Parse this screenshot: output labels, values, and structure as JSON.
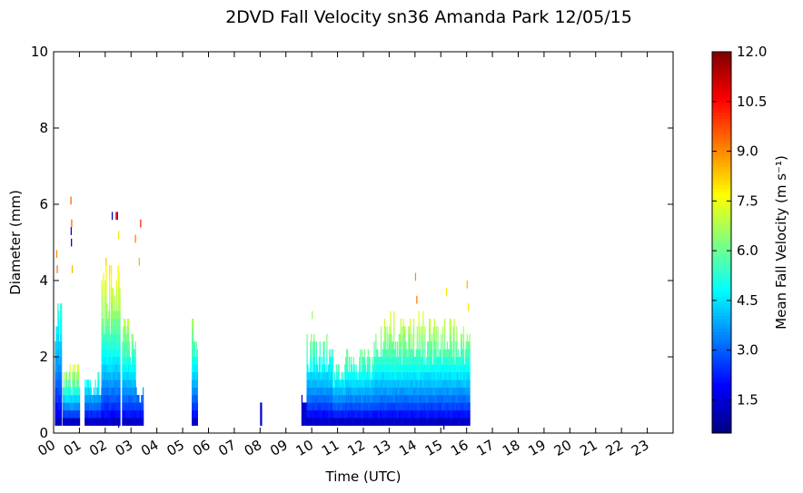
{
  "chart_data": {
    "type": "heatmap",
    "title": "2DVD Fall Velocity sn36 Amanda Park 12/05/15",
    "xlabel": "Time (UTC)",
    "ylabel": "Diameter (mm)",
    "xlim": [
      0,
      24
    ],
    "ylim": [
      0,
      10
    ],
    "x_ticks": [
      "00",
      "01",
      "02",
      "03",
      "04",
      "05",
      "06",
      "07",
      "08",
      "09",
      "10",
      "11",
      "12",
      "13",
      "14",
      "15",
      "16",
      "17",
      "18",
      "19",
      "20",
      "21",
      "22",
      "23"
    ],
    "y_ticks": [
      0,
      2,
      4,
      6,
      8,
      10
    ],
    "colorbar": {
      "label": "Mean Fall Velocity (m s⁻¹)",
      "range": [
        0.5,
        12.0
      ],
      "ticks": [
        "1.5",
        "3.0",
        "4.5",
        "6.0",
        "7.5",
        "9.0",
        "10.5",
        "12.0"
      ],
      "colormap": "jet"
    },
    "bands": [
      {
        "start": 0.05,
        "end": 0.3,
        "top": 3.9,
        "peak": 6.0
      },
      {
        "start": 0.35,
        "end": 1.0,
        "top": 1.7,
        "peak": 7.5
      },
      {
        "start": 1.2,
        "end": 1.85,
        "top": 1.6,
        "peak": 6.0
      },
      {
        "start": 1.85,
        "end": 2.55,
        "top": 4.5,
        "peak": 8.3
      },
      {
        "start": 2.65,
        "end": 3.15,
        "top": 3.0,
        "peak": 7.2
      },
      {
        "start": 3.15,
        "end": 3.45,
        "top": 1.2,
        "peak": 4.0
      },
      {
        "start": 5.35,
        "end": 5.55,
        "top": 3.0,
        "peak": 7.0
      },
      {
        "start": 8.0,
        "end": 8.05,
        "top": 0.9,
        "peak": 1.5
      },
      {
        "start": 9.6,
        "end": 9.8,
        "top": 0.9,
        "peak": 1.5
      },
      {
        "start": 9.8,
        "end": 10.8,
        "top": 2.6,
        "peak": 6.5
      },
      {
        "start": 10.8,
        "end": 11.3,
        "top": 1.8,
        "peak": 6.0
      },
      {
        "start": 11.3,
        "end": 12.4,
        "top": 2.2,
        "peak": 6.5
      },
      {
        "start": 12.4,
        "end": 14.3,
        "top": 3.1,
        "peak": 7.6
      },
      {
        "start": 14.3,
        "end": 16.1,
        "top": 2.9,
        "peak": 7.2
      }
    ],
    "sparse_high": [
      {
        "t": 0.1,
        "d": 4.6,
        "v": 9.0
      },
      {
        "t": 0.12,
        "d": 4.2,
        "v": 9.2
      },
      {
        "t": 0.65,
        "d": 6.0,
        "v": 9.5
      },
      {
        "t": 0.68,
        "d": 5.4,
        "v": 9.5
      },
      {
        "t": 0.66,
        "d": 5.2,
        "v": 1.2
      },
      {
        "t": 0.67,
        "d": 4.9,
        "v": 1.5
      },
      {
        "t": 0.7,
        "d": 4.2,
        "v": 8.5
      },
      {
        "t": 2.25,
        "d": 5.6,
        "v": 1.0
      },
      {
        "t": 2.4,
        "d": 5.6,
        "v": 10.5
      },
      {
        "t": 2.45,
        "d": 5.6,
        "v": 1.2
      },
      {
        "t": 2.5,
        "d": 5.1,
        "v": 8.0
      },
      {
        "t": 3.15,
        "d": 5.0,
        "v": 9.2
      },
      {
        "t": 3.35,
        "d": 5.4,
        "v": 10.2
      },
      {
        "t": 3.3,
        "d": 4.4,
        "v": 8.5
      },
      {
        "t": 10.0,
        "d": 3.0,
        "v": 6.5
      },
      {
        "t": 14.0,
        "d": 4.0,
        "v": 9.0
      },
      {
        "t": 14.05,
        "d": 3.4,
        "v": 9.2
      },
      {
        "t": 15.2,
        "d": 3.6,
        "v": 8.0
      },
      {
        "t": 16.0,
        "d": 3.8,
        "v": 8.5
      },
      {
        "t": 16.05,
        "d": 3.2,
        "v": 8.0
      },
      {
        "t": 15.1,
        "d": 0.1,
        "v": 1.0
      },
      {
        "t": 2.3,
        "d": 0.2,
        "v": 1.0
      },
      {
        "t": 2.5,
        "d": 0.15,
        "v": 1.0
      }
    ]
  }
}
